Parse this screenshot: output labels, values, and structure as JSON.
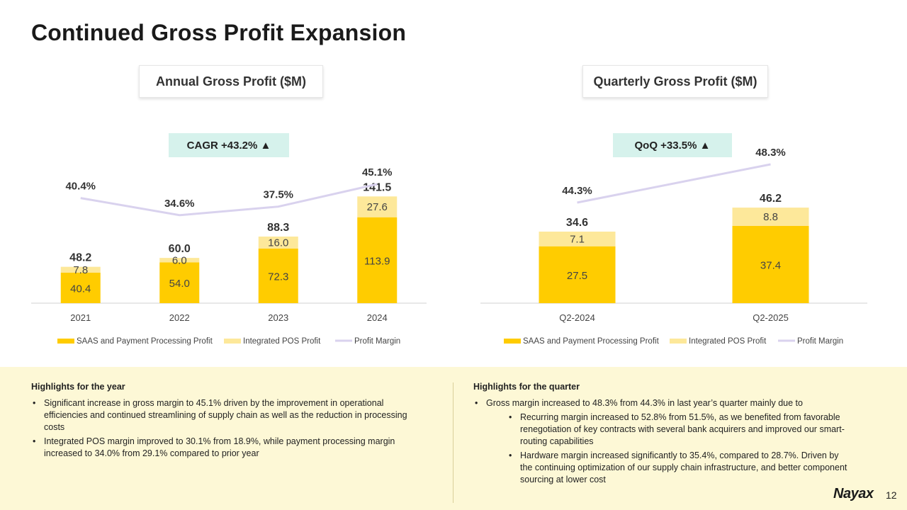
{
  "title": "Continued Gross Profit Expansion",
  "colors": {
    "saas": "#ffcc00",
    "pos": "#fde89a",
    "margin_line": "#d9d2ee",
    "badge_bg": "#d6f2ec",
    "highlight_bg": "#fdf8d6"
  },
  "annual": {
    "box_title": "Annual Gross Profit ($M)",
    "badge": "CAGR +43.2% ▲"
  },
  "quarterly": {
    "box_title": "Quarterly Gross Profit ($M)",
    "badge": "QoQ +33.5% ▲"
  },
  "chart_data": [
    {
      "type": "bar",
      "stacked": true,
      "title": "Annual Gross Profit ($M)",
      "categories": [
        "2021",
        "2022",
        "2023",
        "2024"
      ],
      "series": [
        {
          "name": "SAAS and Payment Processing Profit",
          "values": [
            40.4,
            54.0,
            72.3,
            113.9
          ]
        },
        {
          "name": "Integrated POS Profit",
          "values": [
            7.8,
            6.0,
            16.0,
            27.6
          ]
        },
        {
          "name": "Profit Margin",
          "type": "line",
          "values": [
            40.4,
            34.6,
            37.5,
            45.1
          ],
          "labels": [
            "40.4%",
            "34.6%",
            "37.5%",
            "45.1%"
          ]
        }
      ],
      "totals": [
        48.2,
        60.0,
        88.3,
        141.5
      ],
      "value_labels": [
        [
          "40.4",
          "54.0",
          "72.3",
          "113.9"
        ],
        [
          "7.8",
          "6.0",
          "16.0",
          "27.6"
        ]
      ],
      "total_labels": [
        "48.2",
        "60.0",
        "88.3",
        "141.5"
      ],
      "legend": [
        "SAAS and Payment Processing Profit",
        "Integrated POS Profit",
        "Profit Margin"
      ],
      "legend_position": "bottom",
      "grid": false
    },
    {
      "type": "bar",
      "stacked": true,
      "title": "Quarterly Gross Profit ($M)",
      "categories": [
        "Q2-2024",
        "Q2-2025"
      ],
      "series": [
        {
          "name": "SAAS and Payment Processing Profit",
          "values": [
            27.5,
            37.4
          ]
        },
        {
          "name": "Integrated POS Profit",
          "values": [
            7.1,
            8.8
          ]
        },
        {
          "name": "Profit Margin",
          "type": "line",
          "values": [
            44.3,
            48.3
          ],
          "labels": [
            "44.3%",
            "48.3%"
          ]
        }
      ],
      "totals": [
        34.6,
        46.2
      ],
      "value_labels": [
        [
          "27.5",
          "37.4"
        ],
        [
          "7.1",
          "8.8"
        ]
      ],
      "total_labels": [
        "34.6",
        "46.2"
      ],
      "legend": [
        "SAAS and Payment Processing Profit",
        "Integrated POS Profit",
        "Profit Margin"
      ],
      "legend_position": "bottom",
      "grid": false
    }
  ],
  "highlights": {
    "year": {
      "heading": "Highlights for the year",
      "bullets": [
        "Significant increase in gross margin to 45.1% driven by the improvement in operational efficiencies and continued streamlining of supply chain as well as the reduction in processing costs",
        "Integrated POS margin improved to 30.1% from 18.9%, while payment processing margin increased to 34.0% from 29.1% compared to prior year"
      ]
    },
    "quarter": {
      "heading": "Highlights for the quarter",
      "bullet": "Gross margin increased to 48.3% from 44.3% in last year’s quarter mainly due to",
      "sub_bullets": [
        "Recurring margin increased to 52.8% from 51.5%, as we benefited from favorable renegotiation of key contracts with several bank acquirers and improved our smart-routing capabilities",
        "Hardware margin increased significantly to 35.4%, compared to 28.7%. Driven by the continuing optimization of our supply chain infrastructure, and better component sourcing at lower cost"
      ]
    }
  },
  "footer": {
    "logo": "Nayax",
    "page_number": "12"
  }
}
